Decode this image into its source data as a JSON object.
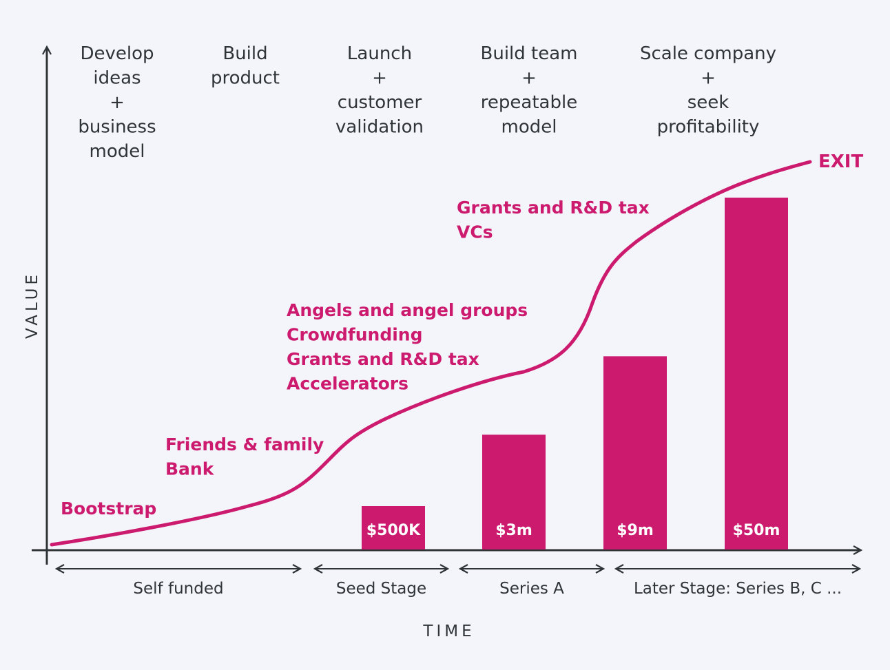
{
  "chart_data": {
    "type": "bar",
    "xlabel": "TIME",
    "ylabel": "VALUE",
    "phases": [
      {
        "lines": [
          "Develop",
          "ideas",
          "+",
          "business",
          "model"
        ]
      },
      {
        "lines": [
          "Build",
          "product"
        ]
      },
      {
        "lines": [
          "Launch",
          "+",
          "customer",
          "validation"
        ]
      },
      {
        "lines": [
          "Build team",
          "+",
          "repeatable",
          "model"
        ]
      },
      {
        "lines": [
          "Scale company",
          "+",
          "seek",
          "profitability"
        ]
      }
    ],
    "funding_sources": [
      {
        "lines": [
          "Bootstrap"
        ]
      },
      {
        "lines": [
          "Friends & family",
          "Bank"
        ]
      },
      {
        "lines": [
          "Angels and angel groups",
          "Crowdfunding",
          "Grants and R&D tax",
          "Accelerators"
        ]
      },
      {
        "lines": [
          "Grants and R&D tax",
          "VCs"
        ]
      }
    ],
    "bars": [
      {
        "label": "$500K",
        "value": 0.5
      },
      {
        "label": "$3m",
        "value": 3
      },
      {
        "label": "$9m",
        "value": 9
      },
      {
        "label": "$50m",
        "value": 50
      }
    ],
    "stages": [
      "Self funded",
      "Seed Stage",
      "Series A",
      "Later Stage: Series B, C ..."
    ],
    "exit_label": "EXIT",
    "colors": {
      "accent": "#cc1a6e",
      "axis": "#2f3437",
      "background": "#f4f5fa"
    }
  }
}
